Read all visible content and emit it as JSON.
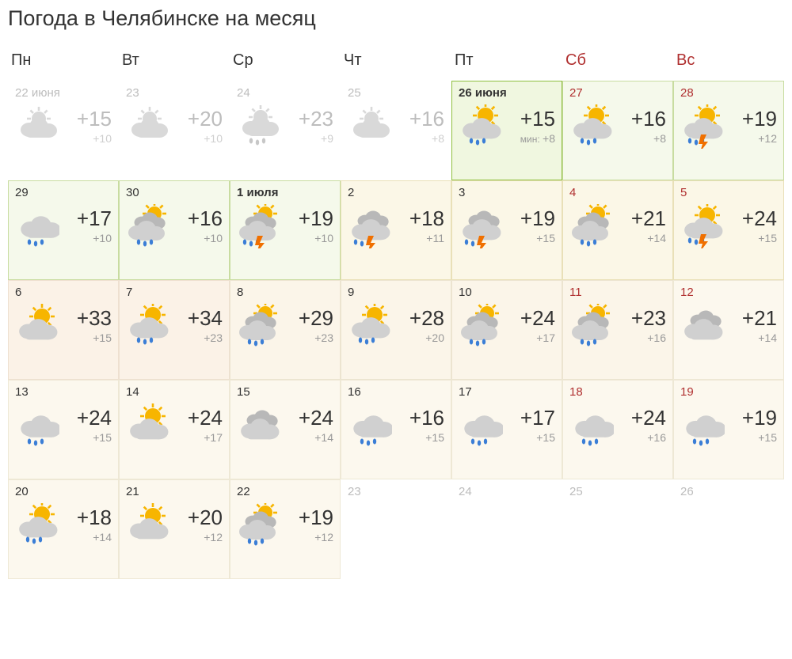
{
  "title": "Погода в Челябинске на месяц",
  "day_headers": [
    {
      "label": "Пн",
      "weekend": false
    },
    {
      "label": "Вт",
      "weekend": false
    },
    {
      "label": "Ср",
      "weekend": false
    },
    {
      "label": "Чт",
      "weekend": false
    },
    {
      "label": "Пт",
      "weekend": false
    },
    {
      "label": "Сб",
      "weekend": true
    },
    {
      "label": "Вс",
      "weekend": true
    }
  ],
  "colors": {
    "text": "#333333",
    "weekend": "#b03030",
    "muted": "#bdbdbd",
    "low": "#999999",
    "sun": "#f7b500",
    "cloud_light": "#d0d0d0",
    "cloud_dark": "#b8b8b8",
    "cloud_past": "#d9d9d9",
    "rain": "#3b7ed6",
    "bolt": "#f07000"
  },
  "cells": [
    {
      "date": "22 июня",
      "state": "past",
      "icon": "partly",
      "high": "+15",
      "low": "+10"
    },
    {
      "date": "23",
      "state": "past",
      "icon": "partly",
      "high": "+20",
      "low": "+10"
    },
    {
      "date": "24",
      "state": "past",
      "icon": "partly-rain",
      "high": "+23",
      "low": "+9"
    },
    {
      "date": "25",
      "state": "past",
      "icon": "partly",
      "high": "+16",
      "low": "+8"
    },
    {
      "date": "26 июня",
      "state": "today",
      "weekend": false,
      "bold": true,
      "icon": "sun-cloud-rain",
      "high": "+15",
      "minlabel": "мин:",
      "low": "+8"
    },
    {
      "date": "27",
      "state": "green",
      "weekend": true,
      "icon": "sun-cloud-rain",
      "high": "+16",
      "low": "+8"
    },
    {
      "date": "28",
      "state": "green",
      "weekend": true,
      "icon": "sun-cloud-storm",
      "high": "+19",
      "low": "+12"
    },
    {
      "date": "29",
      "state": "green",
      "icon": "cloud-rain",
      "high": "+17",
      "low": "+10"
    },
    {
      "date": "30",
      "state": "green",
      "icon": "sun-clouds-rain",
      "high": "+16",
      "low": "+10"
    },
    {
      "date": "1 июля",
      "state": "green",
      "bold": true,
      "icon": "sun-clouds-storm",
      "high": "+19",
      "low": "+10"
    },
    {
      "date": "2",
      "state": "yellow",
      "icon": "clouds-storm",
      "high": "+18",
      "low": "+11"
    },
    {
      "date": "3",
      "state": "yellow",
      "icon": "clouds-storm",
      "high": "+19",
      "low": "+15"
    },
    {
      "date": "4",
      "state": "yellow",
      "weekend": true,
      "icon": "sun-clouds-rain",
      "high": "+21",
      "low": "+14"
    },
    {
      "date": "5",
      "state": "yellow",
      "weekend": true,
      "icon": "sun-cloud-storm",
      "high": "+24",
      "low": "+15"
    },
    {
      "date": "6",
      "state": "pale2",
      "icon": "sun-cloud",
      "high": "+33",
      "low": "+15"
    },
    {
      "date": "7",
      "state": "pale2",
      "icon": "sun-cloud-rain",
      "high": "+34",
      "low": "+23"
    },
    {
      "date": "8",
      "state": "pale1",
      "icon": "sun-clouds-rain",
      "high": "+29",
      "low": "+23"
    },
    {
      "date": "9",
      "state": "pale1",
      "icon": "sun-cloud-rain",
      "high": "+28",
      "low": "+20"
    },
    {
      "date": "10",
      "state": "pale1",
      "icon": "sun-clouds-rain",
      "high": "+24",
      "low": "+17"
    },
    {
      "date": "11",
      "state": "pale1",
      "weekend": true,
      "icon": "sun-clouds-rain",
      "high": "+23",
      "low": "+16"
    },
    {
      "date": "12",
      "state": "cream",
      "weekend": true,
      "icon": "clouds",
      "high": "+21",
      "low": "+14"
    },
    {
      "date": "13",
      "state": "cream",
      "icon": "cloud-rain",
      "high": "+24",
      "low": "+15"
    },
    {
      "date": "14",
      "state": "cream",
      "icon": "sun-cloud",
      "high": "+24",
      "low": "+17"
    },
    {
      "date": "15",
      "state": "cream",
      "icon": "clouds",
      "high": "+24",
      "low": "+14"
    },
    {
      "date": "16",
      "state": "cream",
      "icon": "cloud-rain",
      "high": "+16",
      "low": "+15"
    },
    {
      "date": "17",
      "state": "cream",
      "icon": "cloud-rain",
      "high": "+17",
      "low": "+15"
    },
    {
      "date": "18",
      "state": "cream",
      "weekend": true,
      "icon": "cloud-rain",
      "high": "+24",
      "low": "+16"
    },
    {
      "date": "19",
      "state": "cream",
      "weekend": true,
      "icon": "cloud-rain",
      "high": "+19",
      "low": "+15"
    },
    {
      "date": "20",
      "state": "cream",
      "icon": "sun-cloud-rain",
      "high": "+18",
      "low": "+14"
    },
    {
      "date": "21",
      "state": "cream",
      "icon": "sun-cloud",
      "high": "+20",
      "low": "+12"
    },
    {
      "date": "22",
      "state": "cream",
      "icon": "sun-clouds-rain",
      "high": "+19",
      "low": "+12"
    },
    {
      "date": "23",
      "state": "placeholder"
    },
    {
      "date": "24",
      "state": "placeholder"
    },
    {
      "date": "25",
      "state": "placeholder"
    },
    {
      "date": "26",
      "state": "placeholder"
    }
  ]
}
